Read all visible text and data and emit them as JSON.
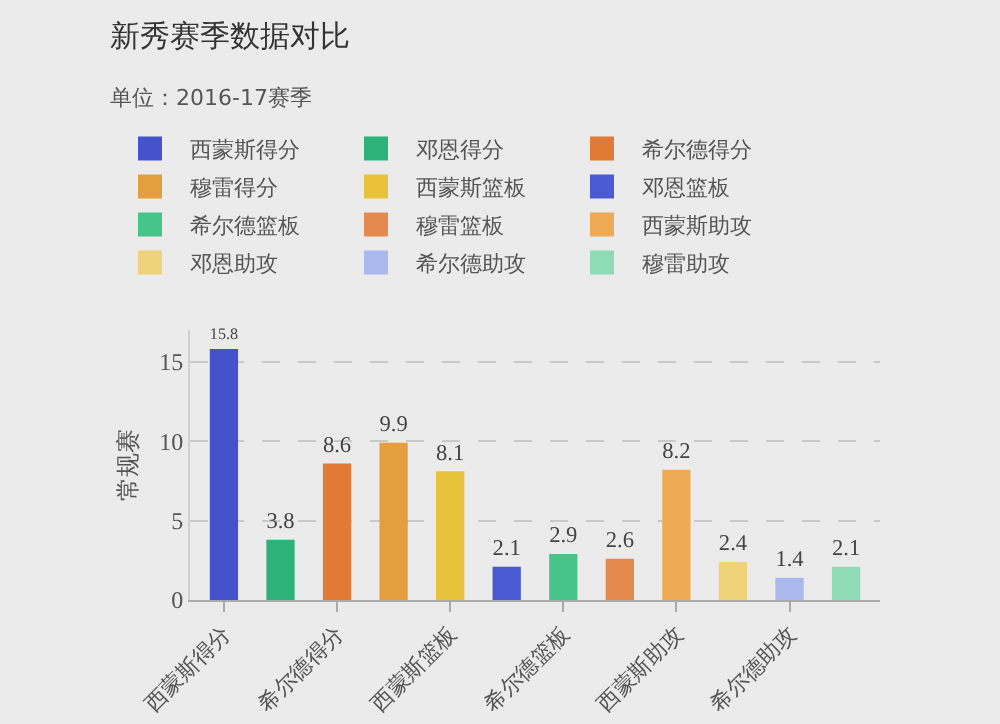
{
  "chart_data": {
    "type": "bar",
    "title": "新秀赛季数据对比",
    "subtitle": "单位：2016-17赛季",
    "ylabel": "常规赛",
    "categories": [
      "西蒙斯得分",
      null,
      "希尔德得分",
      null,
      "西蒙斯篮板",
      null,
      "希尔德篮板",
      null,
      "西蒙斯助攻",
      null,
      "希尔德助攻",
      null
    ],
    "series": [
      {
        "name": "西蒙斯得分",
        "color": "#4453cc",
        "values": [
          15.8,
          null,
          null,
          null,
          null,
          null,
          null,
          null,
          null,
          null,
          null,
          null
        ]
      },
      {
        "name": "邓恩得分",
        "color": "#2db37a",
        "values": [
          null,
          3.8,
          null,
          null,
          null,
          null,
          null,
          null,
          null,
          null,
          null,
          null
        ]
      },
      {
        "name": "希尔德得分",
        "color": "#e07a35",
        "values": [
          null,
          null,
          8.6,
          null,
          null,
          null,
          null,
          null,
          null,
          null,
          null,
          null
        ]
      },
      {
        "name": "穆雷得分",
        "color": "#e59e3e",
        "values": [
          null,
          null,
          null,
          9.9,
          null,
          null,
          null,
          null,
          null,
          null,
          null,
          null
        ]
      },
      {
        "name": "西蒙斯篮板",
        "color": "#e8c23a",
        "values": [
          null,
          null,
          null,
          null,
          8.1,
          null,
          null,
          null,
          null,
          null,
          null,
          null
        ]
      },
      {
        "name": "邓恩篮板",
        "color": "#4a5ad4",
        "values": [
          null,
          null,
          null,
          null,
          null,
          2.1,
          null,
          null,
          null,
          null,
          null,
          null
        ]
      },
      {
        "name": "希尔德篮板",
        "color": "#47c48a",
        "values": [
          null,
          null,
          null,
          null,
          null,
          null,
          2.9,
          null,
          null,
          null,
          null,
          null
        ]
      },
      {
        "name": "穆雷篮板",
        "color": "#e48a4f",
        "values": [
          null,
          null,
          null,
          null,
          null,
          null,
          null,
          2.6,
          null,
          null,
          null,
          null
        ]
      },
      {
        "name": "西蒙斯助攻",
        "color": "#eeaa55",
        "values": [
          null,
          null,
          null,
          null,
          null,
          null,
          null,
          null,
          8.2,
          null,
          null,
          null
        ]
      },
      {
        "name": "邓恩助攻",
        "color": "#f0d27a",
        "values": [
          null,
          null,
          null,
          null,
          null,
          null,
          null,
          null,
          null,
          2.4,
          null,
          null
        ]
      },
      {
        "name": "希尔德助攻",
        "color": "#aab8ee",
        "values": [
          null,
          null,
          null,
          null,
          null,
          null,
          null,
          null,
          null,
          null,
          1.4,
          null
        ]
      },
      {
        "name": "穆雷助攻",
        "color": "#8fdcb4",
        "values": [
          null,
          null,
          null,
          null,
          null,
          null,
          null,
          null,
          null,
          null,
          null,
          2.1
        ]
      }
    ],
    "ylim": [
      0,
      17
    ],
    "yticks": [
      0,
      5,
      10,
      15
    ],
    "grid": "y",
    "legend": "top left",
    "data_labels": true
  }
}
